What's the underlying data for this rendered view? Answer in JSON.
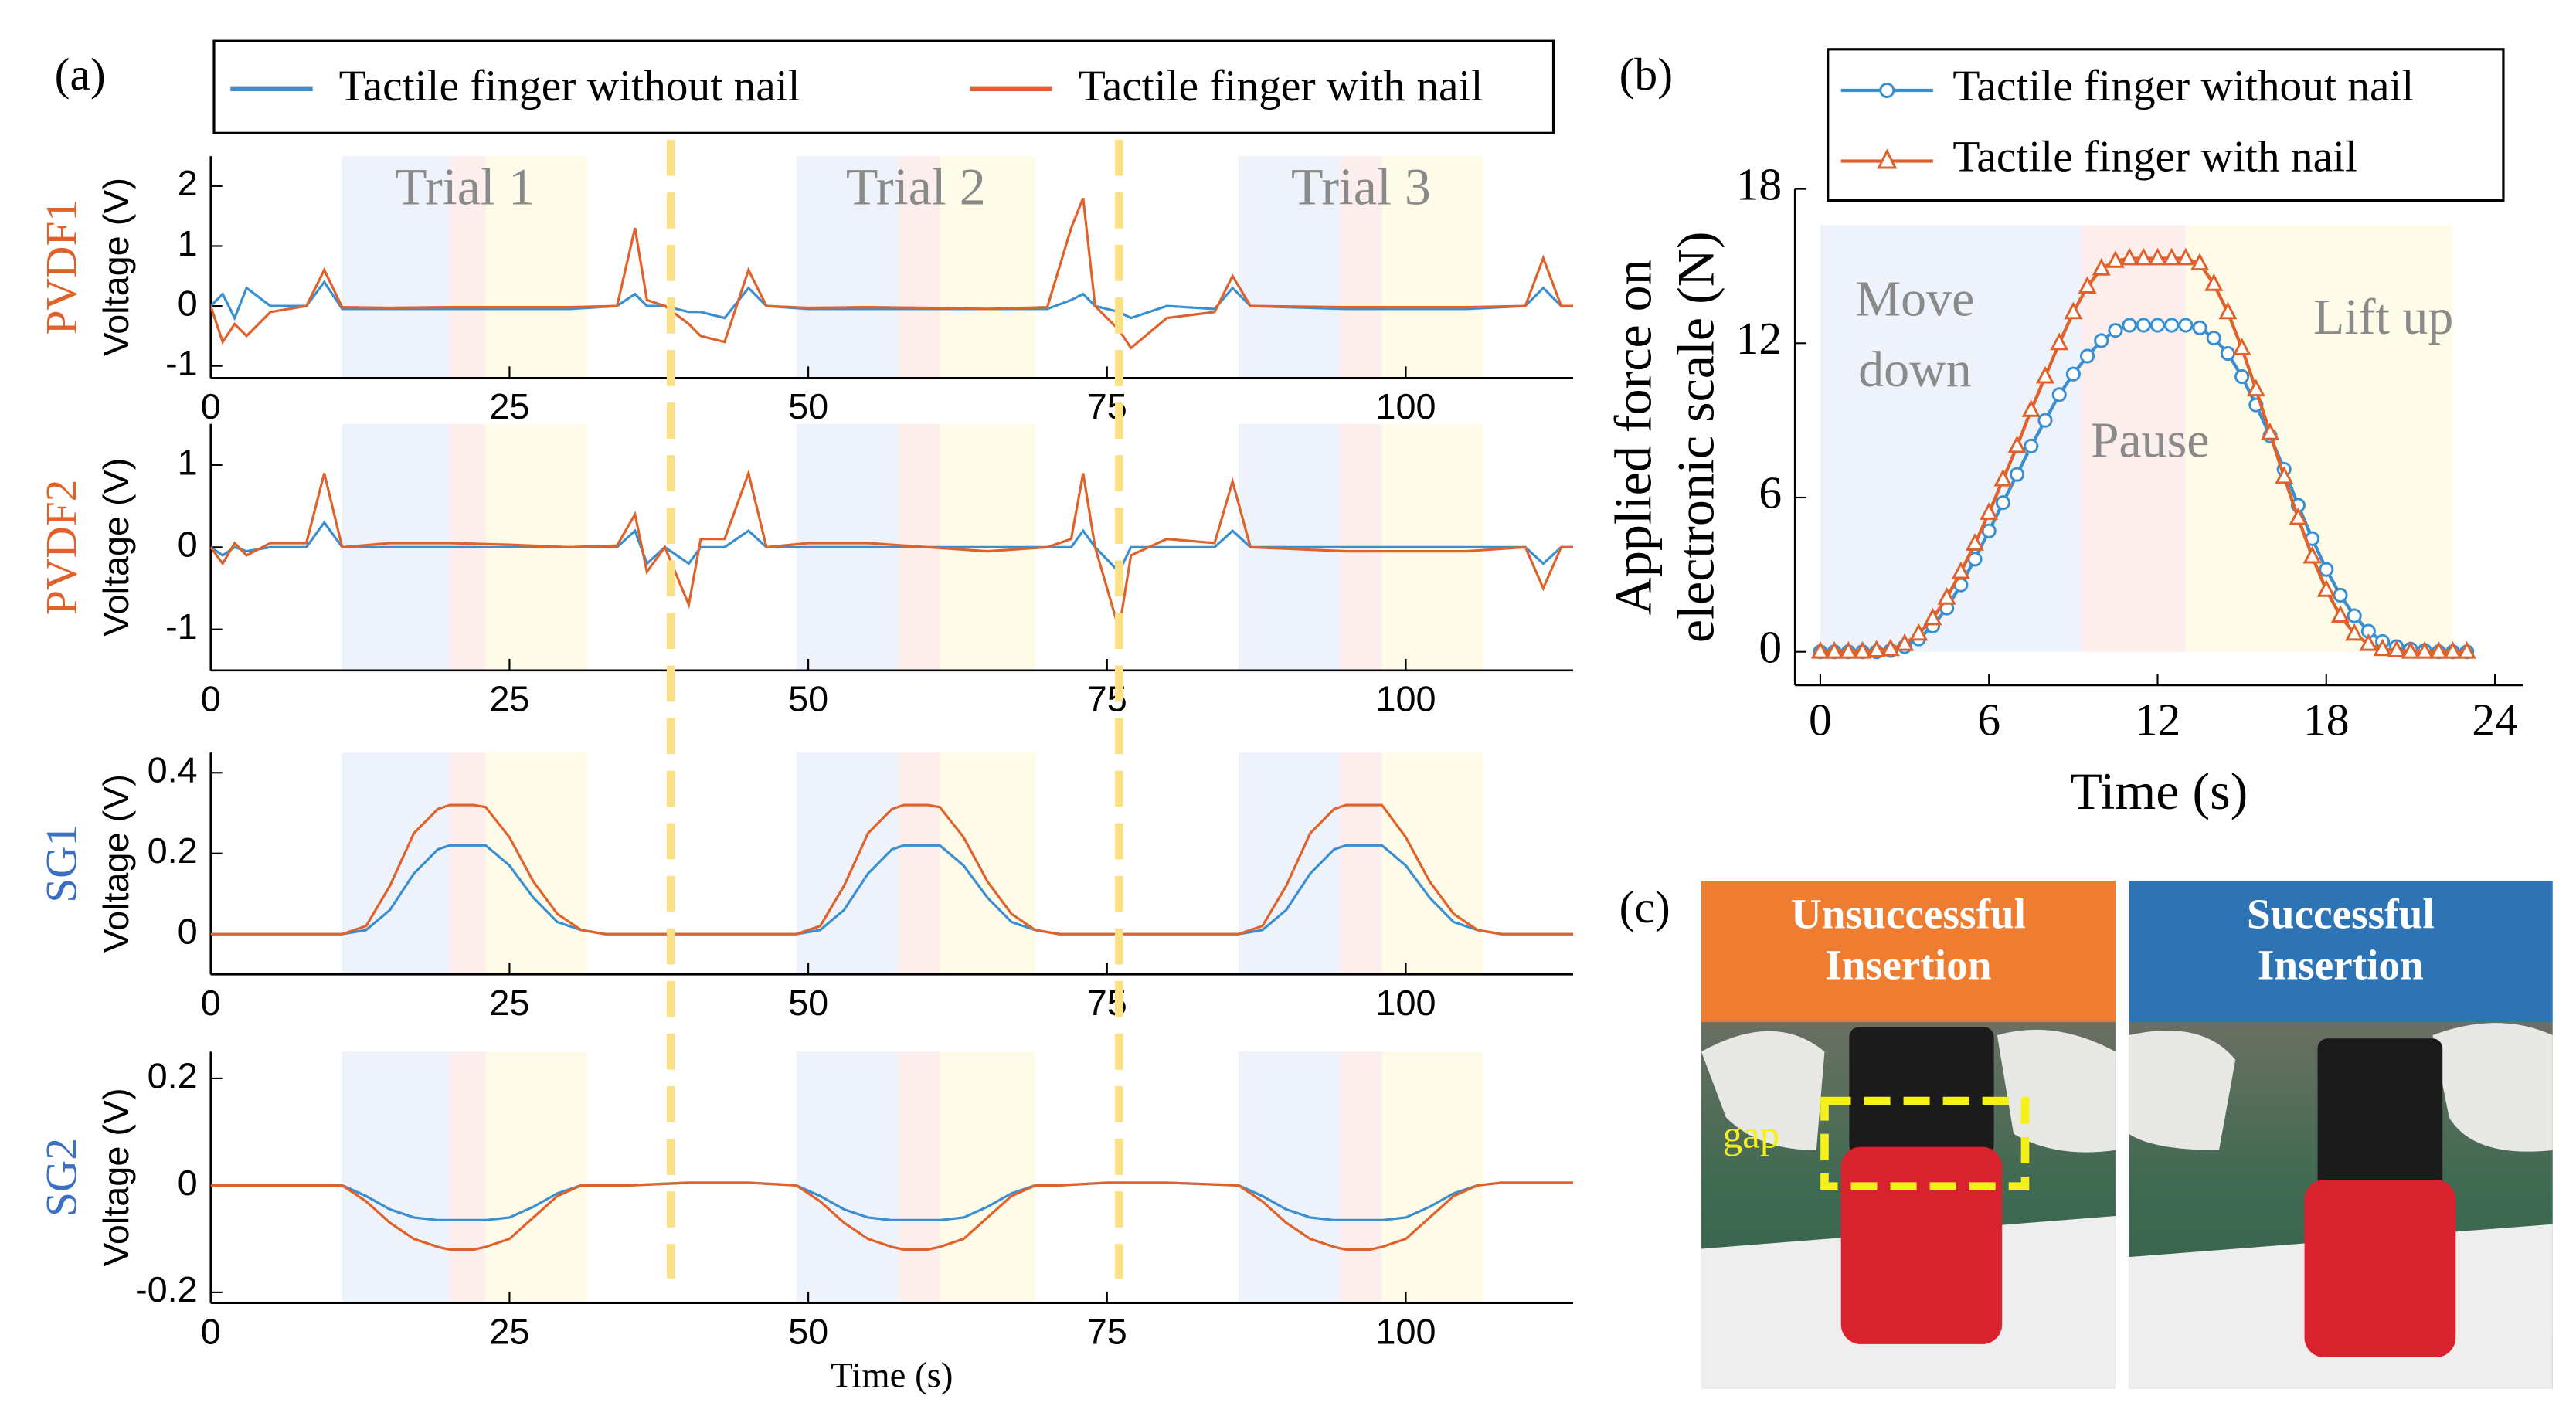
{
  "panel_labels": [
    "(a)",
    "(b)",
    "(c)"
  ],
  "chart_data": [
    {
      "type": "line",
      "row_label": "PVDF1",
      "row_label_color": "#e0622a",
      "ylabel": "Voltage (V)",
      "xlim": [
        0,
        114
      ],
      "xticks": [
        0,
        25,
        50,
        75,
        100
      ],
      "ylim": [
        -1.2,
        2.5
      ],
      "yticks": [
        -1,
        0,
        1,
        2
      ],
      "phases": [
        {
          "start": 11,
          "end": 20,
          "color": "#eef3fb"
        },
        {
          "start": 20,
          "end": 23,
          "color": "#fdeeee"
        },
        {
          "start": 23,
          "end": 31.5,
          "color": "#fefbe8"
        },
        {
          "start": 49,
          "end": 57.5,
          "color": "#eef3fb"
        },
        {
          "start": 57.5,
          "end": 61,
          "color": "#fdeeee"
        },
        {
          "start": 61,
          "end": 69,
          "color": "#fefbe8"
        },
        {
          "start": 86,
          "end": 94.5,
          "color": "#eef3fb"
        },
        {
          "start": 94.5,
          "end": 98,
          "color": "#fdeeee"
        },
        {
          "start": 98,
          "end": 106.5,
          "color": "#fefbe8"
        }
      ],
      "trial_labels": [
        "Trial 1",
        "Trial 2",
        "Trial 3"
      ],
      "dividers": [
        38.5,
        76
      ],
      "divider_color": "#fbe08a",
      "x": [
        0,
        1,
        2,
        3,
        5,
        8,
        9.5,
        11,
        15,
        20,
        25,
        30,
        34,
        35.5,
        36.5,
        38,
        40,
        41,
        43,
        45,
        46.5,
        50,
        55,
        60,
        65,
        70,
        72,
        73,
        74,
        76,
        77,
        80,
        84,
        85.5,
        87,
        95,
        105,
        110,
        111.5,
        113,
        114
      ],
      "series": [
        {
          "name": "Tactile finger without nail",
          "color": "#3a8fd0",
          "values": [
            0,
            0.2,
            -0.2,
            0.3,
            0,
            0,
            0.4,
            -0.05,
            -0.05,
            -0.05,
            -0.05,
            -0.05,
            0,
            0.2,
            0,
            0,
            -0.1,
            -0.1,
            -0.2,
            0.3,
            0,
            -0.05,
            -0.05,
            -0.05,
            -0.05,
            -0.05,
            0.1,
            0.2,
            0,
            -0.1,
            -0.2,
            0,
            -0.05,
            0.3,
            0,
            -0.05,
            -0.05,
            0,
            0.3,
            0,
            0
          ]
        },
        {
          "name": "Tactile finger with nail",
          "color": "#e0622a",
          "values": [
            0,
            -0.6,
            -0.3,
            -0.5,
            -0.1,
            0,
            0.6,
            -0.02,
            -0.03,
            -0.02,
            -0.02,
            -0.02,
            0,
            1.3,
            0.1,
            0,
            -0.3,
            -0.5,
            -0.6,
            0.6,
            0,
            -0.03,
            -0.02,
            -0.03,
            -0.05,
            -0.02,
            1.3,
            1.8,
            0,
            -0.4,
            -0.7,
            -0.2,
            -0.1,
            0.5,
            0,
            -0.02,
            -0.02,
            0,
            0.8,
            0,
            0
          ]
        }
      ]
    },
    {
      "type": "line",
      "row_label": "PVDF2",
      "row_label_color": "#e0622a",
      "ylabel": "Voltage (V)",
      "xlim": [
        0,
        114
      ],
      "xticks": [
        0,
        25,
        50,
        75,
        100
      ],
      "ylim": [
        -1.5,
        1.5
      ],
      "yticks": [
        -1,
        0,
        1
      ],
      "x": [
        0,
        1,
        2,
        3,
        5,
        8,
        9.5,
        11,
        15,
        20,
        25,
        30,
        34,
        35.5,
        36.5,
        38,
        40,
        41,
        43,
        45,
        46.5,
        50,
        55,
        60,
        65,
        70,
        72,
        73,
        74,
        76,
        77,
        80,
        84,
        85.5,
        87,
        95,
        105,
        110,
        111.5,
        113,
        114
      ],
      "series": [
        {
          "name": "Tactile finger without nail",
          "color": "#3a8fd0",
          "values": [
            0,
            -0.1,
            0,
            -0.05,
            0,
            0,
            0.3,
            0,
            0,
            0,
            0,
            0,
            0,
            0.2,
            -0.2,
            0,
            -0.2,
            0,
            0,
            0.2,
            0,
            0,
            0,
            0,
            0,
            0,
            0,
            0.2,
            0,
            -0.3,
            0,
            0,
            0,
            0.2,
            0,
            0,
            0,
            0,
            -0.2,
            0,
            0
          ]
        },
        {
          "name": "Tactile finger with nail",
          "color": "#e0622a",
          "values": [
            0,
            -0.2,
            0.05,
            -0.1,
            0.05,
            0.05,
            0.9,
            0,
            0.05,
            0.05,
            0.03,
            0,
            0.02,
            0.4,
            -0.3,
            0,
            -0.7,
            0.1,
            0.1,
            0.9,
            0,
            0.05,
            0.05,
            0,
            -0.05,
            0,
            0.1,
            0.9,
            0,
            -1.0,
            -0.1,
            0.1,
            0.05,
            0.8,
            0,
            -0.05,
            -0.05,
            0,
            -0.5,
            0,
            0
          ]
        }
      ]
    },
    {
      "type": "line",
      "row_label": "SG1",
      "row_label_color": "#3b6fc4",
      "ylabel": "Voltage (V)",
      "xlim": [
        0,
        114
      ],
      "xticks": [
        0,
        25,
        50,
        75,
        100
      ],
      "ylim": [
        -0.1,
        0.45
      ],
      "yticks": [
        0,
        0.2,
        0.4
      ],
      "x": [
        0,
        5,
        9,
        11,
        13,
        15,
        17,
        19,
        20,
        22,
        23,
        25,
        27,
        29,
        31,
        33,
        35,
        40,
        45,
        49,
        51,
        53,
        55,
        57,
        58,
        60,
        61,
        63,
        65,
        67,
        69,
        71,
        75,
        80,
        86,
        88,
        90,
        92,
        94,
        95,
        97,
        98,
        100,
        102,
        104,
        106,
        108,
        112,
        114
      ],
      "series": [
        {
          "name": "Tactile finger without nail",
          "color": "#3a8fd0",
          "values": [
            0,
            0,
            0,
            0,
            0.01,
            0.06,
            0.15,
            0.21,
            0.22,
            0.22,
            0.22,
            0.17,
            0.09,
            0.03,
            0.01,
            0,
            0,
            0,
            0,
            0,
            0.01,
            0.06,
            0.15,
            0.21,
            0.22,
            0.22,
            0.22,
            0.17,
            0.09,
            0.03,
            0.01,
            0,
            0,
            0,
            0,
            0.01,
            0.06,
            0.15,
            0.21,
            0.22,
            0.22,
            0.22,
            0.17,
            0.09,
            0.03,
            0.01,
            0,
            0,
            0
          ]
        },
        {
          "name": "Tactile finger with nail",
          "color": "#e0622a",
          "values": [
            0,
            0,
            0,
            0,
            0.02,
            0.12,
            0.25,
            0.31,
            0.32,
            0.32,
            0.315,
            0.24,
            0.13,
            0.05,
            0.01,
            0,
            0,
            0,
            0,
            0,
            0.02,
            0.12,
            0.25,
            0.31,
            0.32,
            0.32,
            0.315,
            0.24,
            0.13,
            0.05,
            0.01,
            0,
            0,
            0,
            0,
            0.02,
            0.12,
            0.25,
            0.31,
            0.32,
            0.32,
            0.32,
            0.24,
            0.13,
            0.05,
            0.01,
            0,
            0,
            0
          ]
        }
      ]
    },
    {
      "type": "line",
      "row_label": "SG2",
      "row_label_color": "#3b6fc4",
      "ylabel": "Voltage (V)",
      "xlabel": "Time (s)",
      "xlim": [
        0,
        114
      ],
      "xticks": [
        0,
        25,
        50,
        75,
        100
      ],
      "ylim": [
        -0.22,
        0.25
      ],
      "yticks": [
        -0.2,
        0,
        0.2
      ],
      "x": [
        0,
        5,
        9,
        11,
        13,
        15,
        17,
        19,
        20,
        22,
        23,
        25,
        27,
        29,
        31,
        33,
        35,
        40,
        45,
        49,
        51,
        53,
        55,
        57,
        58,
        60,
        61,
        63,
        65,
        67,
        69,
        71,
        75,
        80,
        86,
        88,
        90,
        92,
        94,
        95,
        97,
        98,
        100,
        102,
        104,
        106,
        108,
        112,
        114
      ],
      "series": [
        {
          "name": "Tactile finger without nail",
          "color": "#3a8fd0",
          "values": [
            0,
            0,
            0,
            0,
            -0.02,
            -0.045,
            -0.06,
            -0.065,
            -0.065,
            -0.065,
            -0.065,
            -0.06,
            -0.04,
            -0.015,
            0,
            0,
            0,
            0.005,
            0.005,
            0,
            -0.02,
            -0.045,
            -0.06,
            -0.065,
            -0.065,
            -0.065,
            -0.065,
            -0.06,
            -0.04,
            -0.015,
            0,
            0,
            0.005,
            0.005,
            0,
            -0.02,
            -0.045,
            -0.06,
            -0.065,
            -0.065,
            -0.065,
            -0.065,
            -0.06,
            -0.04,
            -0.015,
            0,
            0.005,
            0.005,
            0.005
          ]
        },
        {
          "name": "Tactile finger with nail",
          "color": "#e0622a",
          "values": [
            0,
            0,
            0,
            0,
            -0.03,
            -0.07,
            -0.1,
            -0.115,
            -0.12,
            -0.12,
            -0.115,
            -0.1,
            -0.06,
            -0.02,
            0,
            0,
            0,
            0.005,
            0.005,
            0,
            -0.03,
            -0.07,
            -0.1,
            -0.115,
            -0.12,
            -0.12,
            -0.115,
            -0.1,
            -0.06,
            -0.02,
            0,
            0,
            0.005,
            0.005,
            0,
            -0.03,
            -0.07,
            -0.1,
            -0.115,
            -0.12,
            -0.12,
            -0.115,
            -0.1,
            -0.06,
            -0.02,
            0,
            0.005,
            0.005,
            0.005
          ]
        }
      ]
    },
    {
      "type": "line",
      "ylabel": [
        "Applied force on",
        "electronic scale  (N)"
      ],
      "xlabel": "Time (s)",
      "xlim": [
        -0.9,
        25
      ],
      "xticks": [
        0,
        6,
        12,
        18,
        24
      ],
      "ylim": [
        -1.3,
        18
      ],
      "yticks": [
        0,
        6,
        12,
        18
      ],
      "phases": [
        {
          "start": 0,
          "end": 9.3,
          "color": "#eef3fb"
        },
        {
          "start": 9.3,
          "end": 13,
          "color": "#fdeeee"
        },
        {
          "start": 13,
          "end": 22.5,
          "color": "#fefbe8"
        }
      ],
      "phase_labels": [
        [
          "Move",
          "down"
        ],
        [
          "Pause"
        ],
        [
          "Lift up"
        ]
      ],
      "x": [
        0,
        0.5,
        1,
        1.5,
        2,
        2.5,
        3,
        3.5,
        4,
        4.5,
        5,
        5.5,
        6,
        6.5,
        7,
        7.5,
        8,
        8.5,
        9,
        9.5,
        10,
        10.5,
        11,
        11.5,
        12,
        12.5,
        13,
        13.5,
        14,
        14.5,
        15,
        15.5,
        16,
        16.5,
        17,
        17.5,
        18,
        18.5,
        19,
        19.5,
        20,
        20.5,
        21,
        21.5,
        22,
        22.5,
        23
      ],
      "series": [
        {
          "name": "Tactile finger without nail",
          "color": "#3a8fd0",
          "marker": "circle",
          "values": [
            0,
            0,
            0,
            0,
            0,
            0.05,
            0.2,
            0.5,
            1.0,
            1.7,
            2.6,
            3.6,
            4.7,
            5.8,
            6.9,
            8.0,
            9.0,
            10.0,
            10.8,
            11.5,
            12.1,
            12.5,
            12.7,
            12.7,
            12.7,
            12.7,
            12.7,
            12.6,
            12.2,
            11.6,
            10.7,
            9.6,
            8.4,
            7.1,
            5.7,
            4.4,
            3.2,
            2.2,
            1.4,
            0.8,
            0.4,
            0.2,
            0.1,
            0.05,
            0,
            0,
            0
          ]
        },
        {
          "name": "Tactile finger with nail",
          "color": "#e0622a",
          "marker": "triangle",
          "values": [
            0,
            0,
            0,
            0,
            0.05,
            0.1,
            0.3,
            0.7,
            1.3,
            2.1,
            3.1,
            4.2,
            5.4,
            6.7,
            8.0,
            9.4,
            10.7,
            12.0,
            13.2,
            14.2,
            14.9,
            15.2,
            15.3,
            15.3,
            15.3,
            15.3,
            15.3,
            15.1,
            14.3,
            13.2,
            11.8,
            10.2,
            8.5,
            6.8,
            5.2,
            3.7,
            2.4,
            1.4,
            0.7,
            0.3,
            0.1,
            0.05,
            0,
            0,
            0,
            0,
            0
          ]
        }
      ]
    }
  ],
  "photos": {
    "left": {
      "title": [
        "Unsuccessful",
        "Insertion"
      ],
      "color": "#ee7d31",
      "note": "gap"
    },
    "right": {
      "title": [
        "Successful",
        "Insertion"
      ],
      "color": "#2e74b5"
    }
  }
}
